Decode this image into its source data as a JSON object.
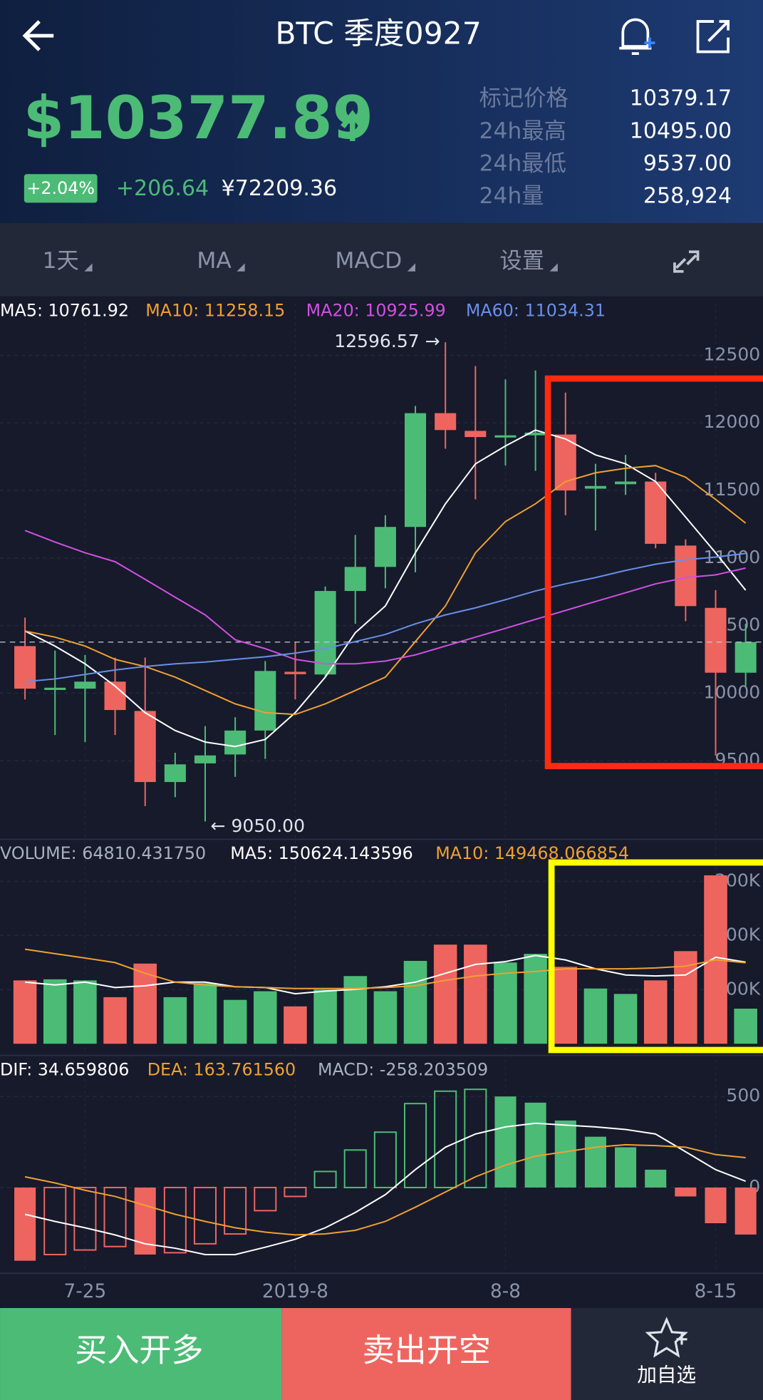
{
  "header": {
    "title": "BTC 季度0927",
    "price": "$10377.89",
    "change_pct": "+2.04%",
    "change": "+206.64",
    "cny": "¥72209.36",
    "stats": [
      {
        "label": "标记价格",
        "value": "10379.17"
      },
      {
        "label": "24h最高",
        "value": "10495.00"
      },
      {
        "label": "24h最低",
        "value": "9537.00"
      },
      {
        "label": "24h量",
        "value": "258,924"
      }
    ]
  },
  "toolbar": [
    "1天",
    "MA",
    "MACD",
    "设置"
  ],
  "buttons": {
    "buy": "买入开多",
    "sell": "卖出开空",
    "watch": "加自选"
  },
  "chart_data": [
    {
      "type": "candlestick",
      "up_color": "#4cbb76",
      "down_color": "#ee6560",
      "open": [
        10348,
        10030,
        10033,
        10085,
        9868,
        9342,
        9480,
        9546,
        9723,
        10158,
        10138,
        10756,
        10934,
        11230,
        12072,
        11941,
        11895,
        11908,
        11914,
        11513,
        11546,
        11566,
        11092,
        10631,
        10151
      ],
      "high": [
        10559,
        10315,
        10282,
        10263,
        10263,
        9559,
        9756,
        9822,
        10237,
        10381,
        10789,
        11171,
        11316,
        12125,
        12596.57,
        12421,
        12322,
        12388,
        12224,
        11697,
        11763,
        11631,
        11138,
        10763,
        10513
      ],
      "low": [
        9953,
        9690,
        9638,
        9690,
        9164,
        9230,
        9050,
        9381,
        9513,
        9954,
        10118,
        10513,
        10776,
        10894,
        11809,
        11434,
        11684,
        11645,
        11316,
        11204,
        11467,
        11072,
        10533,
        9539,
        10052
      ],
      "close": [
        10033,
        10040,
        10085,
        9875,
        9342,
        9473,
        9539,
        9723,
        10164,
        10140,
        10756,
        10934,
        11230,
        12072,
        11947,
        11895,
        11908,
        11928,
        11500,
        11533,
        11566,
        11105,
        10644,
        10151,
        10377.89
      ],
      "series": [
        {
          "name": "MA5: 10761.92",
          "color": "#ffffff",
          "values": [
            10460,
            10348,
            10217,
            10052,
            9855,
            9723,
            9638,
            9605,
            9657,
            9855,
            10118,
            10447,
            10645,
            11039,
            11401,
            11697,
            11829,
            11947,
            11881,
            11763,
            11697,
            11566,
            11303,
            11039,
            10761.92
          ]
        },
        {
          "name": "MA10: 11258.15",
          "color": "#f0a030",
          "values": [
            10460,
            10414,
            10348,
            10250,
            10197,
            10118,
            10019,
            9921,
            9855,
            9842,
            9921,
            10019,
            10118,
            10381,
            10645,
            11039,
            11270,
            11401,
            11566,
            11631,
            11664,
            11684,
            11598,
            11434,
            11258.15
          ]
        },
        {
          "name": "MA20: 10925.99",
          "color": "#d050e0",
          "values": [
            11204,
            11118,
            11039,
            10973,
            10842,
            10710,
            10579,
            10395,
            10329,
            10250,
            10217,
            10217,
            10237,
            10283,
            10348,
            10414,
            10480,
            10546,
            10612,
            10678,
            10743,
            10809,
            10855,
            10875,
            10925.99
          ]
        },
        {
          "name": "MA60: 11034.31",
          "color": "#6a8fe8",
          "values": [
            10085,
            10105,
            10138,
            10171,
            10197,
            10217,
            10230,
            10250,
            10269,
            10296,
            10329,
            10381,
            10434,
            10513,
            10579,
            10631,
            10691,
            10756,
            10809,
            10855,
            10908,
            10954,
            10987,
            11007,
            11034.31
          ]
        }
      ],
      "annotations": [
        "12596.57 →",
        "← 9050.00"
      ],
      "ylim": [
        8950,
        12700
      ],
      "yticks": [
        9500,
        10000,
        10500,
        11000,
        11500,
        12000,
        12500
      ],
      "grid": true
    },
    {
      "type": "volume",
      "bars": {
        "name": "VOLUME: 64810.431750",
        "values": [
          117000,
          119000,
          117000,
          86000,
          148000,
          86000,
          112000,
          81000,
          97000,
          69000,
          100000,
          125000,
          97000,
          153000,
          183000,
          183000,
          150000,
          166000,
          142000,
          102000,
          92000,
          117000,
          171000,
          311000,
          64810.43175
        ],
        "colors": [
          "#ee6560",
          "#4cbb76",
          "#4cbb76",
          "#ee6560",
          "#ee6560",
          "#4cbb76",
          "#4cbb76",
          "#4cbb76",
          "#4cbb76",
          "#ee6560",
          "#4cbb76",
          "#4cbb76",
          "#4cbb76",
          "#4cbb76",
          "#ee6560",
          "#ee6560",
          "#4cbb76",
          "#4cbb76",
          "#ee6560",
          "#4cbb76",
          "#4cbb76",
          "#ee6560",
          "#ee6560",
          "#ee6560",
          "#4cbb76"
        ]
      },
      "series": [
        {
          "name": "MA5: 150624.143596",
          "color": "#ffffff",
          "values": [
            113700,
            108700,
            113700,
            103800,
            107100,
            113700,
            113700,
            105400,
            103800,
            92300,
            97200,
            100500,
            105400,
            113700,
            130100,
            146600,
            151600,
            163100,
            154800,
            138400,
            126900,
            125200,
            126900,
            159800,
            150624.143596
          ]
        },
        {
          "name": "MA10: 149468.066854",
          "color": "#f0a030",
          "values": [
            174600,
            166400,
            158200,
            149900,
            130100,
            113700,
            108700,
            105400,
            103800,
            102100,
            102100,
            102100,
            103800,
            107100,
            117000,
            125200,
            130100,
            133400,
            138400,
            138400,
            138400,
            140000,
            143300,
            154900,
            149468.066854
          ]
        }
      ],
      "ylim": [
        0,
        320000
      ],
      "yticks": [
        {
          "value": 100000,
          "label": "100K"
        },
        {
          "value": 200000,
          "label": "200K"
        },
        {
          "value": 300000,
          "label": "300K"
        }
      ],
      "grid": true
    },
    {
      "type": "macd",
      "series": [
        {
          "name": "DIF: 34.659806",
          "color": "#ffffff",
          "values": [
            -147,
            -186,
            -221,
            -260,
            -309,
            -333,
            -368,
            -368,
            -328,
            -284,
            -221,
            -137,
            -39,
            98,
            221,
            294,
            333,
            353,
            343,
            333,
            319,
            294,
            196,
            98,
            34.659806
          ]
        },
        {
          "name": "DEA: 163.761560",
          "color": "#f0a030",
          "values": [
            59,
            25,
            -15,
            -49,
            -98,
            -147,
            -186,
            -221,
            -245,
            -260,
            -255,
            -235,
            -186,
            -108,
            -25,
            59,
            123,
            172,
            196,
            221,
            235,
            230,
            221,
            181,
            163.76156
          ]
        }
      ],
      "histogram": {
        "name": "MACD: -258.203509",
        "values": [
          -402,
          -368,
          -343,
          -324,
          -368,
          -358,
          -309,
          -255,
          -127,
          -49,
          88,
          206,
          304,
          461,
          529,
          539,
          500,
          466,
          368,
          279,
          221,
          98,
          -49,
          -196,
          -258.203509
        ],
        "colors": [
          "#ee6560",
          "#ee6560",
          "#ee6560",
          "#ee6560",
          "#ee6560",
          "#ee6560",
          "#ee6560",
          "#ee6560",
          "#ee6560",
          "#ee6560",
          "#4cbb76",
          "#4cbb76",
          "#4cbb76",
          "#4cbb76",
          "#4cbb76",
          "#4cbb76",
          "#4cbb76",
          "#4cbb76",
          "#4cbb76",
          "#4cbb76",
          "#4cbb76",
          "#4cbb76",
          "#ee6560",
          "#ee6560",
          "#ee6560"
        ],
        "filled": [
          true,
          false,
          false,
          false,
          true,
          false,
          false,
          false,
          false,
          false,
          false,
          false,
          false,
          false,
          false,
          false,
          true,
          true,
          true,
          true,
          true,
          true,
          true,
          true,
          true
        ]
      },
      "categories": [
        null,
        null,
        "7-25",
        null,
        null,
        null,
        null,
        null,
        null,
        "2019-8",
        null,
        null,
        null,
        null,
        null,
        null,
        "8-8",
        null,
        null,
        null,
        null,
        null,
        null,
        "8-15",
        null
      ],
      "ylim": [
        -420,
        560
      ],
      "yticks": [
        0,
        500
      ],
      "grid": true
    }
  ]
}
